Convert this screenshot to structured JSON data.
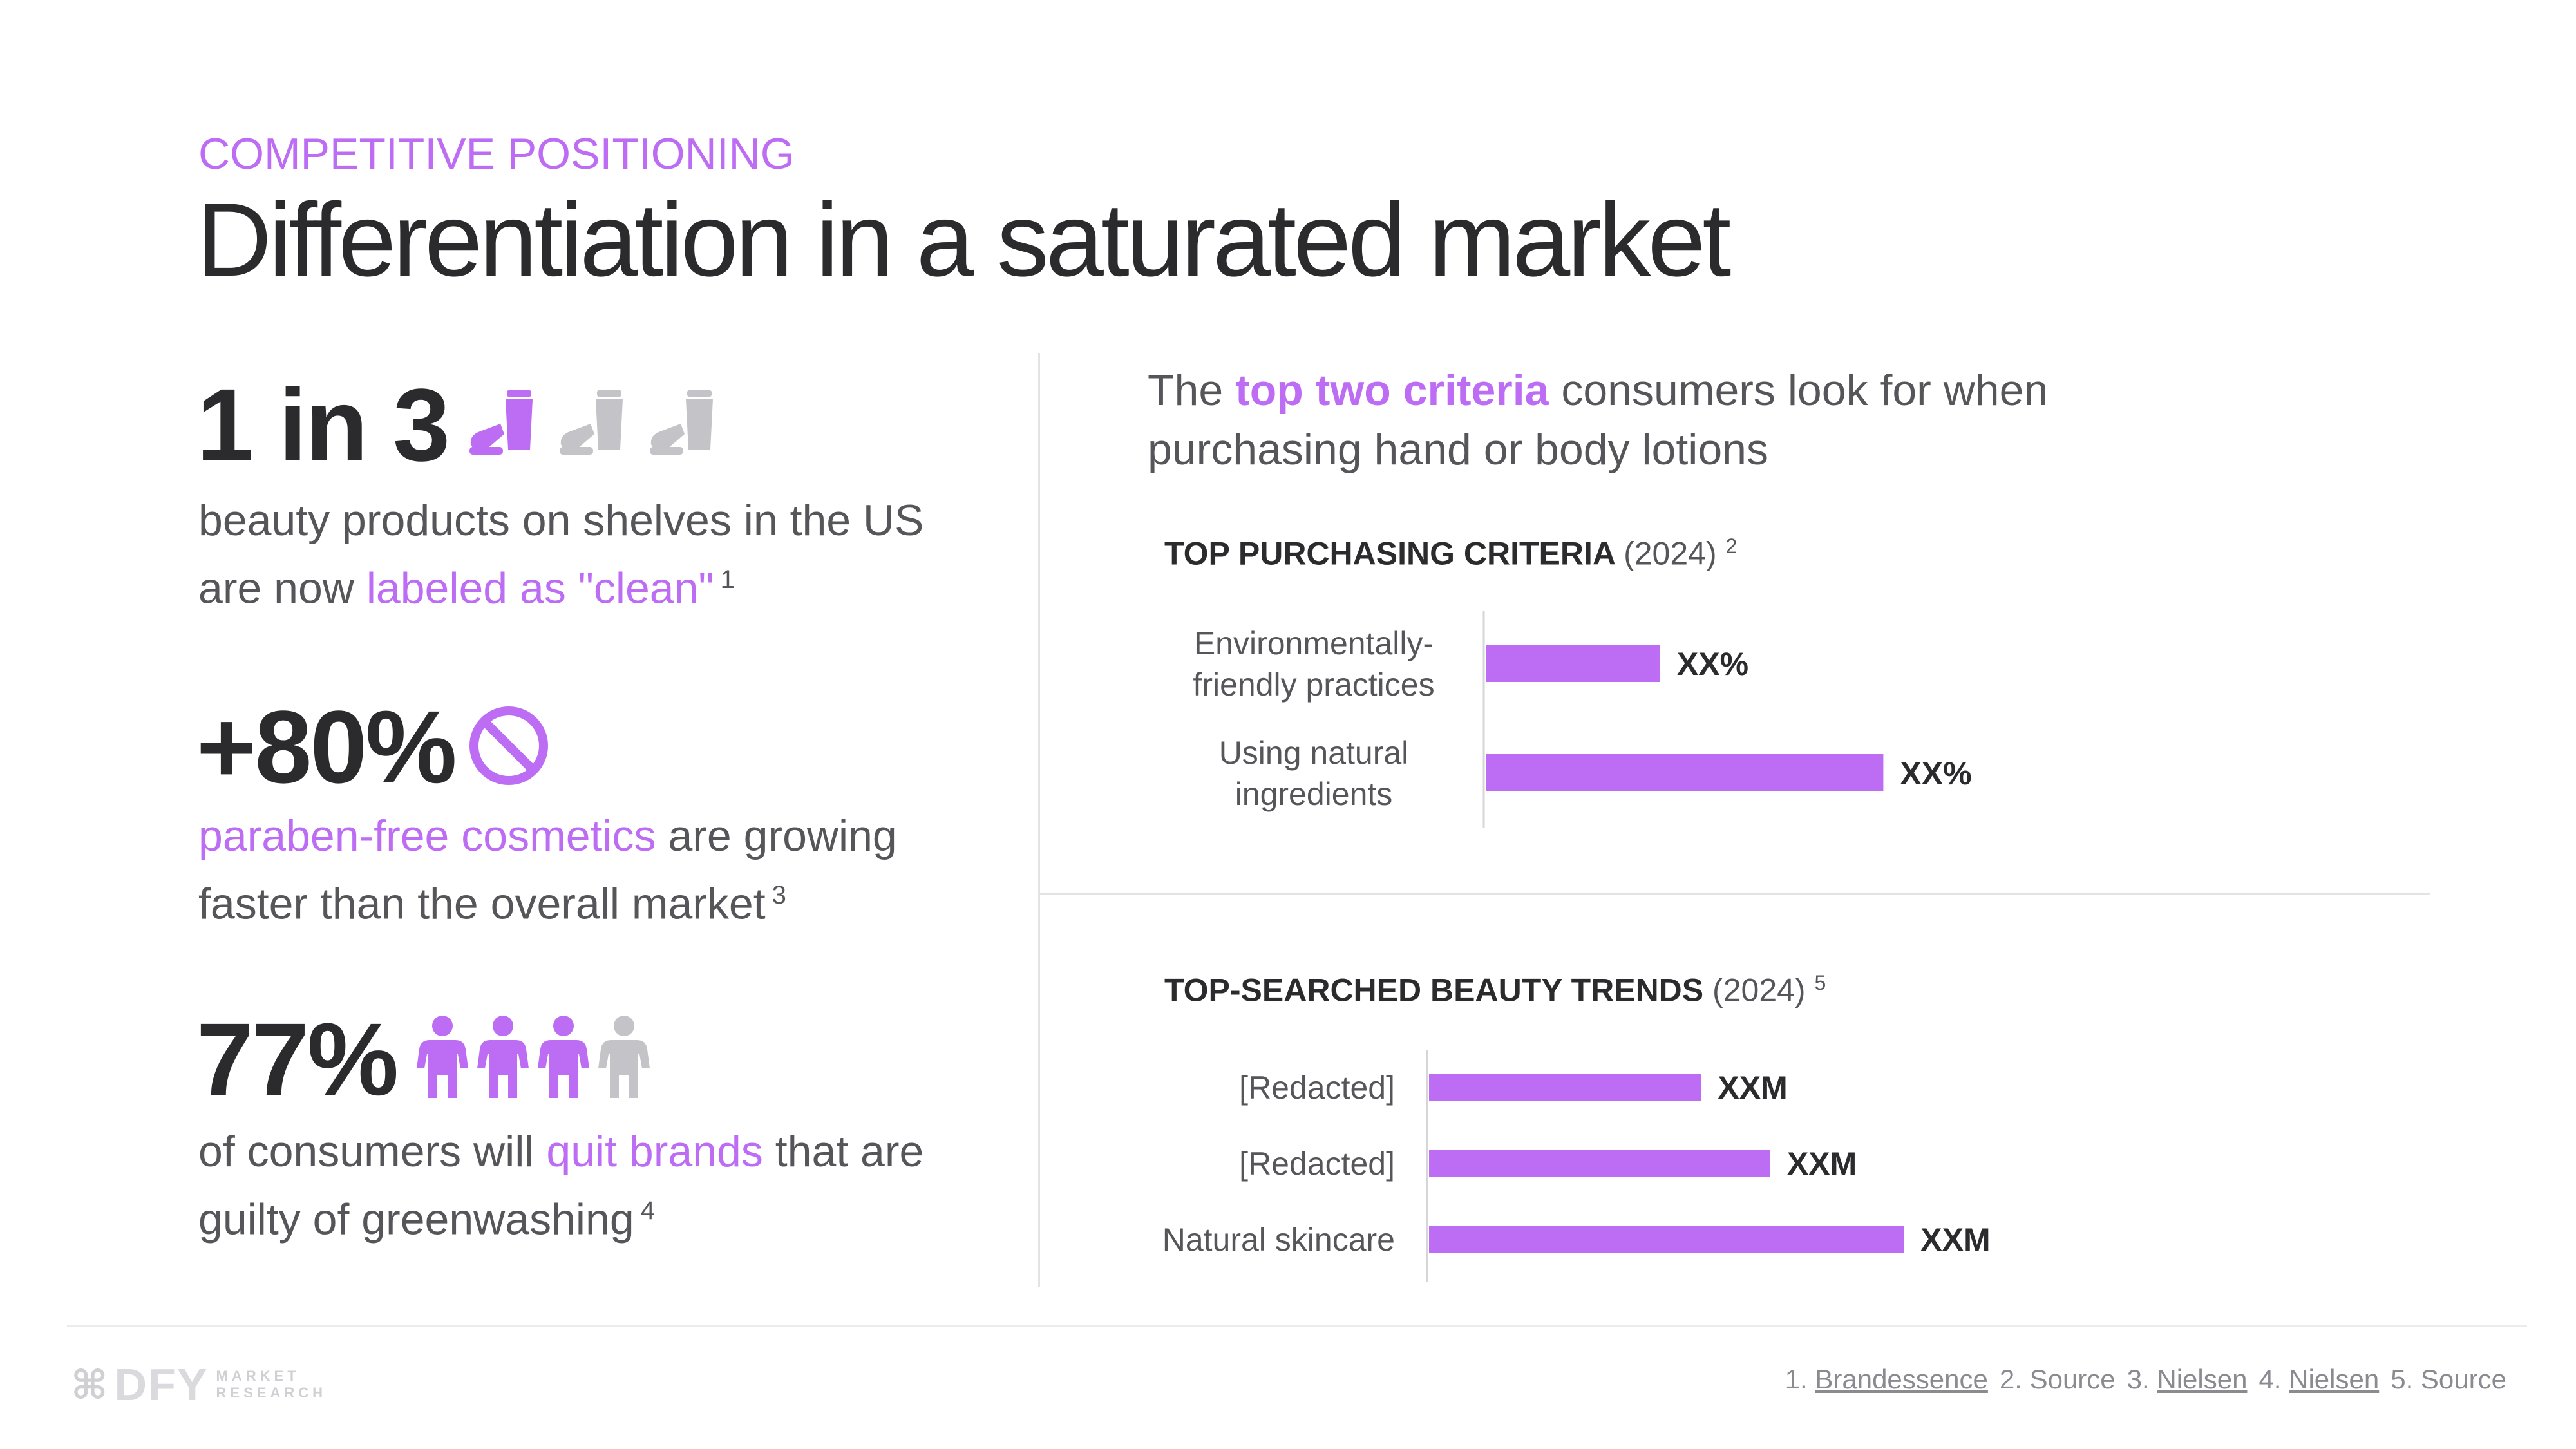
{
  "header": {
    "eyebrow": "COMPETITIVE POSITIONING",
    "title": "Differentiation in a saturated market"
  },
  "stats": [
    {
      "big": "1 in 3",
      "desc_pre": "beauty products on shelves in the US are now ",
      "desc_highlight": "labeled as \"clean\"",
      "desc_post": "",
      "footnote": "1",
      "icon": "lotion-tube-icon",
      "icon_filled": 1,
      "icon_total": 3
    },
    {
      "big": "+80%",
      "desc_pre": "",
      "desc_highlight": "paraben-free cosmetics",
      "desc_post": " are growing faster than the overall market",
      "footnote": "3",
      "icon": "prohibited-icon"
    },
    {
      "big": "77%",
      "desc_pre": "of consumers will ",
      "desc_highlight": "quit brands",
      "desc_post": " that are guilty of greenwashing",
      "footnote": "4",
      "icon": "person-icon",
      "icon_filled": 3,
      "icon_total": 4
    }
  ],
  "intro": {
    "pre": "The ",
    "highlight": "top two criteria",
    "post": " consumers look for when purchasing hand or body lotions"
  },
  "chart_data": [
    {
      "type": "bar",
      "orientation": "horizontal",
      "title": "TOP PURCHASING CRITERIA",
      "year": "(2024)",
      "footnote": "2",
      "categories": [
        [
          "Environmentally-",
          "friendly practices"
        ],
        [
          "Using natural",
          "ingredients"
        ]
      ],
      "values": [
        43,
        98
      ],
      "value_labels": [
        "XX%",
        "XX%"
      ],
      "xlim": [
        0,
        100
      ],
      "grid": false
    },
    {
      "type": "bar",
      "orientation": "horizontal",
      "title": "TOP-SEARCHED BEAUTY TRENDS",
      "year": "(2024)",
      "footnote": "5",
      "categories": [
        [
          "[Redacted]"
        ],
        [
          "[Redacted]"
        ],
        [
          "Natural skincare"
        ]
      ],
      "values": [
        55,
        69,
        96
      ],
      "value_labels": [
        "XXM",
        "XXM",
        "XXM"
      ],
      "xlim": [
        0,
        100
      ],
      "grid": false
    }
  ],
  "colors": {
    "accent": "#bd6cf4",
    "muted_icon": "#c4c4c8",
    "text_dark": "#2b2b2d",
    "text_body": "#55555a"
  },
  "footer": {
    "logo": {
      "mark": "⌘",
      "name": "DFY",
      "sub1": "MARKET",
      "sub2": "RESEARCH"
    },
    "sources": [
      {
        "num": "1.",
        "label": "Brandessence",
        "underline": true
      },
      {
        "num": "2.",
        "label": "Source",
        "underline": false
      },
      {
        "num": "3.",
        "label": "Nielsen",
        "underline": true
      },
      {
        "num": "4.",
        "label": "Nielsen",
        "underline": true
      },
      {
        "num": "5.",
        "label": "Source",
        "underline": false
      }
    ]
  }
}
